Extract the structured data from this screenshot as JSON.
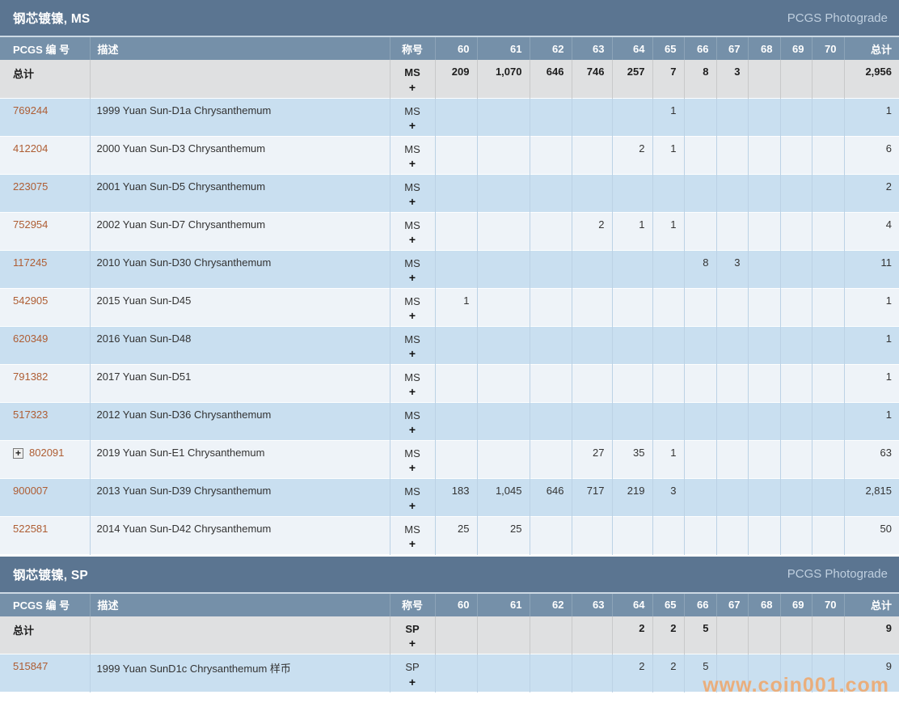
{
  "page": {
    "watermark": "www.coin001.com"
  },
  "columns": [
    "PCGS 编 号",
    "描述",
    "称号",
    "60",
    "61",
    "62",
    "63",
    "64",
    "65",
    "66",
    "67",
    "68",
    "69",
    "70",
    "总计"
  ],
  "colors": {
    "title_bar_bg": "#5b7591",
    "column_header_bg": "#7590a9",
    "totals_row_bg": "#dfe0e1",
    "row_alt_blue": "#c9dff0",
    "row_alt_light": "#eef3f8",
    "link": "#ae5d33",
    "photograde_link": "#bfcfdf",
    "cell_border": "#bcd2e5",
    "watermark": "#f0a668"
  },
  "tables": [
    {
      "title": "钢芯镀镍, MS",
      "photograde_label": "PCGS Photograde",
      "totals": {
        "label": "总计",
        "designation": "MS",
        "plus": "+",
        "grades": [
          "209",
          "1,070",
          "646",
          "746",
          "257",
          "7",
          "8",
          "3",
          "",
          "",
          ""
        ],
        "total": "2,956"
      },
      "rows": [
        {
          "pcgs_number": "769244",
          "expandable": false,
          "description": "1999 Yuan Sun-D1a Chrysanthemum",
          "designation": "MS",
          "plus": "+",
          "grades": [
            "",
            "",
            "",
            "",
            "",
            "1",
            "",
            "",
            "",
            "",
            ""
          ],
          "total": "1"
        },
        {
          "pcgs_number": "412204",
          "expandable": false,
          "description": "2000 Yuan Sun-D3 Chrysanthemum",
          "designation": "MS",
          "plus": "+",
          "grades": [
            "",
            "",
            "",
            "",
            "2",
            "1",
            "",
            "",
            "",
            "",
            ""
          ],
          "total": "6"
        },
        {
          "pcgs_number": "223075",
          "expandable": false,
          "description": "2001 Yuan Sun-D5 Chrysanthemum",
          "designation": "MS",
          "plus": "+",
          "grades": [
            "",
            "",
            "",
            "",
            "",
            "",
            "",
            "",
            "",
            "",
            ""
          ],
          "total": "2"
        },
        {
          "pcgs_number": "752954",
          "expandable": false,
          "description": "2002 Yuan Sun-D7 Chrysanthemum",
          "designation": "MS",
          "plus": "+",
          "grades": [
            "",
            "",
            "",
            "2",
            "1",
            "1",
            "",
            "",
            "",
            "",
            ""
          ],
          "total": "4"
        },
        {
          "pcgs_number": "117245",
          "expandable": false,
          "description": "2010 Yuan Sun-D30 Chrysanthemum",
          "designation": "MS",
          "plus": "+",
          "grades": [
            "",
            "",
            "",
            "",
            "",
            "",
            "8",
            "3",
            "",
            "",
            ""
          ],
          "total": "11"
        },
        {
          "pcgs_number": "542905",
          "expandable": false,
          "description": "2015 Yuan Sun-D45",
          "designation": "MS",
          "plus": "+",
          "grades": [
            "1",
            "",
            "",
            "",
            "",
            "",
            "",
            "",
            "",
            "",
            ""
          ],
          "total": "1"
        },
        {
          "pcgs_number": "620349",
          "expandable": false,
          "description": "2016 Yuan Sun-D48",
          "designation": "MS",
          "plus": "+",
          "grades": [
            "",
            "",
            "",
            "",
            "",
            "",
            "",
            "",
            "",
            "",
            ""
          ],
          "total": "1"
        },
        {
          "pcgs_number": "791382",
          "expandable": false,
          "description": "2017 Yuan Sun-D51",
          "designation": "MS",
          "plus": "+",
          "grades": [
            "",
            "",
            "",
            "",
            "",
            "",
            "",
            "",
            "",
            "",
            ""
          ],
          "total": "1"
        },
        {
          "pcgs_number": "517323",
          "expandable": false,
          "description": "2012 Yuan Sun-D36 Chrysanthemum",
          "designation": "MS",
          "plus": "+",
          "grades": [
            "",
            "",
            "",
            "",
            "",
            "",
            "",
            "",
            "",
            "",
            ""
          ],
          "total": "1"
        },
        {
          "pcgs_number": "802091",
          "expandable": true,
          "description": "2019 Yuan Sun-E1 Chrysanthemum",
          "designation": "MS",
          "plus": "+",
          "grades": [
            "",
            "",
            "",
            "27",
            "35",
            "1",
            "",
            "",
            "",
            "",
            ""
          ],
          "total": "63"
        },
        {
          "pcgs_number": "900007",
          "expandable": false,
          "description": "2013 Yuan Sun-D39 Chrysanthemum",
          "designation": "MS",
          "plus": "+",
          "grades": [
            "183",
            "1,045",
            "646",
            "717",
            "219",
            "3",
            "",
            "",
            "",
            "",
            ""
          ],
          "total": "2,815"
        },
        {
          "pcgs_number": "522581",
          "expandable": false,
          "description": "2014 Yuan Sun-D42 Chrysanthemum",
          "designation": "MS",
          "plus": "+",
          "grades": [
            "25",
            "25",
            "",
            "",
            "",
            "",
            "",
            "",
            "",
            "",
            ""
          ],
          "total": "50"
        }
      ]
    },
    {
      "title": "钢芯镀镍, SP",
      "photograde_label": "PCGS Photograde",
      "totals": {
        "label": "总计",
        "designation": "SP",
        "plus": "+",
        "grades": [
          "",
          "",
          "",
          "",
          "2",
          "2",
          "5",
          "",
          "",
          "",
          ""
        ],
        "total": "9"
      },
      "rows": [
        {
          "pcgs_number": "515847",
          "expandable": false,
          "description": "1999 Yuan SunD1c Chrysanthemum 样币",
          "designation": "SP",
          "plus": "+",
          "grades": [
            "",
            "",
            "",
            "",
            "2",
            "2",
            "5",
            "",
            "",
            "",
            ""
          ],
          "total": "9"
        }
      ]
    }
  ]
}
